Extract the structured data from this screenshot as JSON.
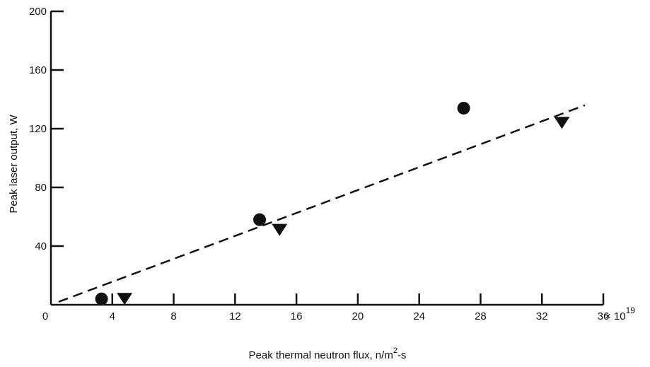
{
  "chart_data": {
    "type": "scatter",
    "title": "",
    "xlabel": "Peak thermal neutron flux, n/m",
    "xlabel_sup": "2",
    "xlabel_suffix": "-s",
    "ylabel": "Peak laser output, W",
    "x_multiplier_text": "× 10",
    "x_multiplier_exp": "19",
    "xlim": [
      0,
      36
    ],
    "ylim": [
      0,
      200
    ],
    "x_ticks": [
      0,
      4,
      8,
      12,
      16,
      20,
      24,
      28,
      32,
      36
    ],
    "y_ticks": [
      40,
      80,
      120,
      160,
      200
    ],
    "grid": false,
    "series": [
      {
        "marker": "circle",
        "x": [
          3.3,
          13.6,
          26.9
        ],
        "y": [
          4,
          58,
          134
        ]
      },
      {
        "marker": "triangle-down",
        "x": [
          4.8,
          14.9,
          33.3
        ],
        "y": [
          4,
          51,
          124
        ]
      }
    ],
    "fit_line": {
      "style": "dashed",
      "x": [
        0.5,
        34.8
      ],
      "y": [
        2,
        136
      ]
    }
  }
}
